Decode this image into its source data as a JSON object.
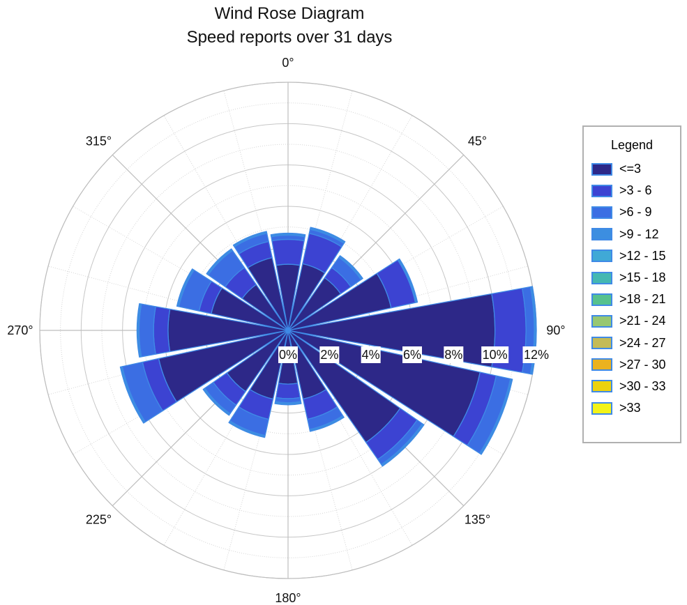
{
  "chart_data": {
    "type": "wind-rose",
    "title": "Wind Rose Diagram",
    "subtitle": "Speed reports over 31 days",
    "angular_axis": {
      "direction": "clockwise",
      "zero": "north",
      "tick_labels": [
        "0°",
        "45°",
        "90°",
        "135°",
        "180°",
        "225°",
        "270°",
        "315°"
      ]
    },
    "radial_axis": {
      "range": [
        0,
        12
      ],
      "unit": "%",
      "tick_values": [
        0,
        2,
        4,
        6,
        8,
        10,
        12
      ],
      "tick_labels": [
        "0%",
        "2%",
        "4%",
        "6%",
        "8%",
        "10%",
        "12%"
      ]
    },
    "grid": true,
    "legend": {
      "title": "Legend",
      "placement": "right",
      "entries": [
        "<=3",
        ">3 - 6",
        ">6 - 9",
        ">9 - 12",
        ">12 - 15",
        ">15 - 18",
        ">18 - 21",
        ">21 - 24",
        ">24 - 27",
        ">27 - 30",
        ">30 - 33",
        ">33"
      ]
    },
    "series_colors": [
      "#2d2888",
      "#3c43d2",
      "#3b6ee3",
      "#3c8ee0",
      "#40a9d6",
      "#44b8b2",
      "#56c18e",
      "#97c772",
      "#c4bb57",
      "#ebb21f",
      "#ecd20e",
      "#f3f317"
    ],
    "bar_outline_color": "#3f8ae6",
    "directions": [
      0,
      22.5,
      45,
      67.5,
      90,
      112.5,
      135,
      157.5,
      180,
      202.5,
      225,
      247.5,
      270,
      292.5,
      315,
      337.5
    ],
    "series": [
      {
        "name": "<=3",
        "values": [
          3.2,
          3.3,
          3.1,
          5.1,
          10.0,
          9.5,
          6.6,
          3.4,
          2.6,
          3.4,
          3.6,
          6.4,
          5.8,
          3.8,
          2.7,
          3.6
        ]
      },
      {
        "name": ">3 - 6",
        "values": [
          1.2,
          1.5,
          0.6,
          1.2,
          1.5,
          0.8,
          1.0,
          1.0,
          0.7,
          1.0,
          0.8,
          0.8,
          0.7,
          0.6,
          1.0,
          0.8
        ]
      },
      {
        "name": ">6 - 9",
        "values": [
          0.2,
          0.2,
          0.6,
          0.0,
          0.4,
          0.7,
          0.3,
          0.5,
          0.2,
          0.8,
          0.5,
          1.0,
          0.7,
          1.0,
          1.0,
          0.4
        ]
      },
      {
        "name": ">9 - 12",
        "values": [
          0.1,
          0.1,
          0.1,
          0.1,
          0.1,
          0.1,
          0.1,
          0.1,
          0.1,
          0.1,
          0.1,
          0.1,
          0.1,
          0.1,
          0.1,
          0.1
        ]
      }
    ]
  }
}
